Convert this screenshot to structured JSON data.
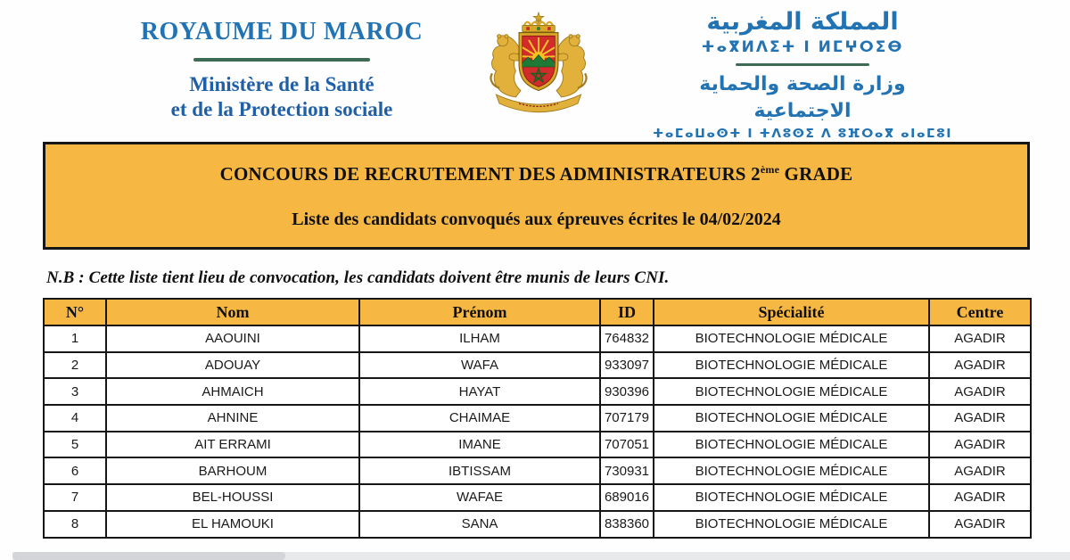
{
  "header": {
    "left": {
      "line1": "ROYAUME DU MAROC",
      "line2": "Ministère de la Santé",
      "line3": "et de la Protection sociale"
    },
    "right": {
      "arabic1": "المملكة المغربية",
      "tifinagh1": "ⵜⴰⴳⵍⴷⵉⵜ ⵏ ⵍⵎⵖⵔⵉⴱ",
      "arabic2": "وزارة الصحة والحماية الاجتماعية",
      "tifinagh2": "ⵜⴰⵎⴰⵡⴰⵙⵜ ⵏ ⵜⴷⵓⵙⵉ ⴷ ⵓⴼⵔⴰⴳ ⴰⵏⴰⵎⵓⵏ"
    },
    "emblem": "moroccan-coat-of-arms"
  },
  "banner": {
    "title_prefix": "CONCOURS DE RECRUTEMENT DES ADMINISTRATEURS 2",
    "title_sup": "ème",
    "title_suffix": " GRADE",
    "subtitle": "Liste des candidats convoqués aux épreuves écrites le 04/02/2024"
  },
  "note": "N.B : Cette liste tient lieu de convocation, les candidats doivent être munis de leurs CNI.",
  "table": {
    "columns": [
      "N°",
      "Nom",
      "Prénom",
      "ID",
      "Spécialité",
      "Centre"
    ],
    "rows": [
      [
        "1",
        "AAOUINI",
        "ILHAM",
        "764832",
        "BIOTECHNOLOGIE MÉDICALE",
        "AGADIR"
      ],
      [
        "2",
        "ADOUAY",
        "WAFA",
        "933097",
        "BIOTECHNOLOGIE MÉDICALE",
        "AGADIR"
      ],
      [
        "3",
        "AHMAICH",
        "HAYAT",
        "930396",
        "BIOTECHNOLOGIE MÉDICALE",
        "AGADIR"
      ],
      [
        "4",
        "AHNINE",
        "CHAIMAE",
        "707179",
        "BIOTECHNOLOGIE MÉDICALE",
        "AGADIR"
      ],
      [
        "5",
        "AIT ERRAMI",
        "IMANE",
        "707051",
        "BIOTECHNOLOGIE MÉDICALE",
        "AGADIR"
      ],
      [
        "6",
        "BARHOUM",
        "IBTISSAM",
        "730931",
        "BIOTECHNOLOGIE MÉDICALE",
        "AGADIR"
      ],
      [
        "7",
        "BEL-HOUSSI",
        "WAFAE",
        "689016",
        "BIOTECHNOLOGIE MÉDICALE",
        "AGADIR"
      ],
      [
        "8",
        "EL HAMOUKI",
        "SANA",
        "838360",
        "BIOTECHNOLOGIE MÉDICALE",
        "AGADIR"
      ]
    ]
  },
  "colors": {
    "accent_orange": "#F7B843",
    "header_blue": "#2173B4",
    "ministry_blue": "#1E5FA7",
    "separator_green": "#3E6B55",
    "border_black": "#161616"
  }
}
